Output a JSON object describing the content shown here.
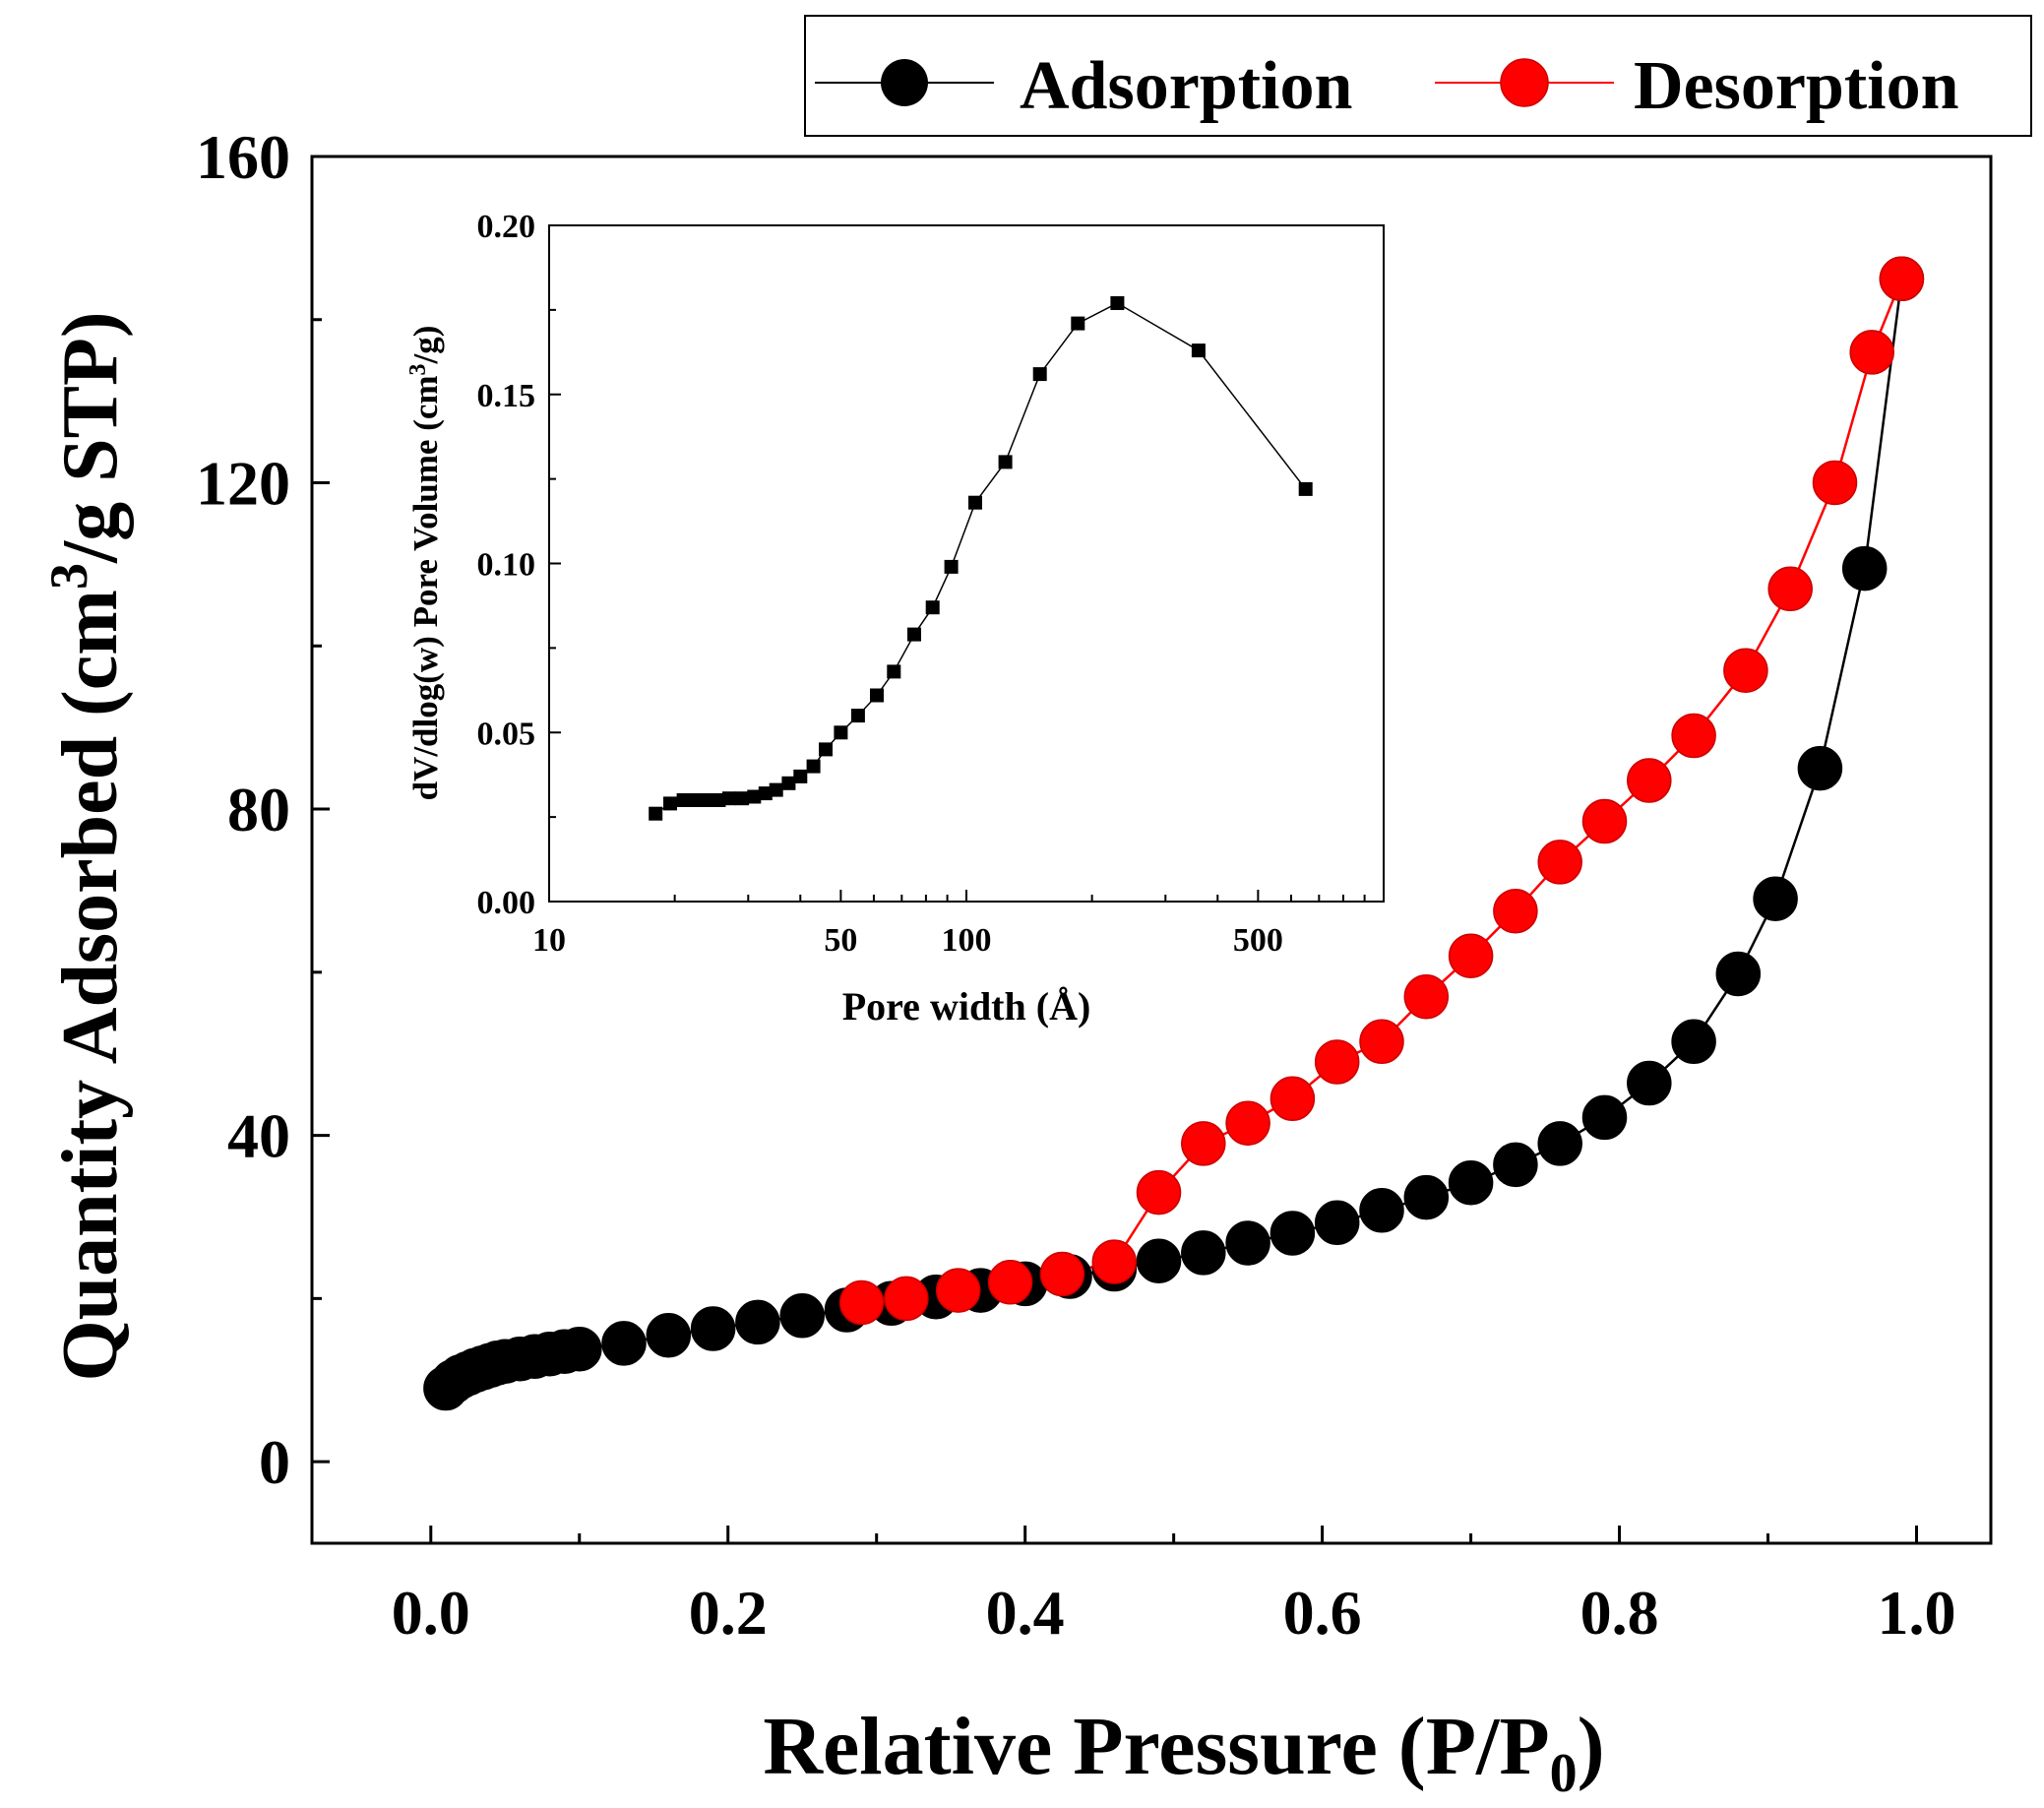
{
  "chart_data": [
    {
      "id": "main",
      "type": "scatter",
      "xlabel_base": "Relative Pressure (P/P",
      "xlabel_sub": "0",
      "xlabel_end": ")",
      "ylabel_base": "Quantity Adsorbed (cm",
      "ylabel_sup": "3",
      "ylabel_end": "/g STP)",
      "xlim": [
        -0.08,
        1.05
      ],
      "ylim": [
        -10,
        160
      ],
      "x_ticks": [
        0.0,
        0.2,
        0.4,
        0.6,
        0.8,
        1.0
      ],
      "x_tick_labels": [
        "0.0",
        "0.2",
        "0.4",
        "0.6",
        "0.8",
        "1.0"
      ],
      "x_minor_ticks": [
        0.1,
        0.3,
        0.5,
        0.7,
        0.9
      ],
      "y_ticks": [
        0,
        40,
        80,
        120,
        160
      ],
      "y_tick_labels": [
        "0",
        "40",
        "80",
        "120",
        "160"
      ],
      "y_minor_ticks": [
        20,
        60,
        100,
        140
      ],
      "grid": false,
      "legend_position": "top-right-outside",
      "series": [
        {
          "name": "Adsorption",
          "color": "#000000",
          "marker": "circle",
          "x": [
            0.01,
            0.015,
            0.02,
            0.025,
            0.03,
            0.035,
            0.04,
            0.045,
            0.05,
            0.06,
            0.07,
            0.08,
            0.09,
            0.1,
            0.13,
            0.16,
            0.19,
            0.22,
            0.25,
            0.28,
            0.31,
            0.34,
            0.37,
            0.4,
            0.43,
            0.46,
            0.49,
            0.52,
            0.55,
            0.58,
            0.61,
            0.64,
            0.67,
            0.7,
            0.73,
            0.76,
            0.79,
            0.82,
            0.85,
            0.88,
            0.905,
            0.935,
            0.965,
            0.99
          ],
          "y": [
            9,
            9.8,
            10.4,
            10.8,
            11.2,
            11.5,
            11.8,
            12.1,
            12.3,
            12.6,
            12.9,
            13.2,
            13.5,
            13.8,
            14.5,
            15.5,
            16.3,
            17.1,
            17.9,
            18.6,
            19.4,
            20.2,
            21.0,
            21.8,
            22.7,
            23.6,
            24.6,
            25.6,
            26.8,
            28.0,
            29.3,
            30.8,
            32.4,
            34.2,
            36.4,
            39.0,
            42.2,
            46.4,
            51.5,
            59.8,
            69.0,
            85.0,
            109.5,
            145.0
          ]
        },
        {
          "name": "Desorption",
          "color": "#ff0000",
          "marker": "circle",
          "x": [
            0.99,
            0.97,
            0.945,
            0.915,
            0.885,
            0.85,
            0.82,
            0.79,
            0.76,
            0.73,
            0.7,
            0.67,
            0.64,
            0.61,
            0.58,
            0.55,
            0.52,
            0.49,
            0.46,
            0.425,
            0.39,
            0.355,
            0.32,
            0.29
          ],
          "y": [
            145.0,
            136.0,
            120.0,
            107.0,
            97.0,
            89.0,
            83.5,
            78.5,
            73.5,
            67.5,
            62.0,
            57.0,
            51.5,
            49.0,
            44.5,
            41.5,
            39.0,
            33.0,
            24.5,
            23.0,
            22.0,
            21.0,
            20.0,
            19.5
          ]
        }
      ]
    },
    {
      "id": "inset",
      "type": "line",
      "xlabel": "Pore width (Å)",
      "ylabel_base": "dV/dlog(w) Pore Volume (cm",
      "ylabel_sup": "3",
      "ylabel_end": "/g)",
      "x_scale": "log",
      "xlim": [
        10,
        1000
      ],
      "ylim": [
        0,
        0.2
      ],
      "x_ticks": [
        10,
        50,
        100,
        500
      ],
      "x_tick_labels": [
        "10",
        "50",
        "100",
        "500"
      ],
      "y_ticks": [
        0,
        0.05,
        0.1,
        0.15,
        0.2
      ],
      "y_tick_labels": [
        "0.00",
        "0.05",
        "0.10",
        "0.15",
        "0.20"
      ],
      "grid": false,
      "series": [
        {
          "color": "#000000",
          "marker": "square",
          "x": [
            18,
            19.5,
            21,
            22.5,
            24,
            25.5,
            27,
            29,
            31,
            33,
            35,
            37.5,
            40,
            43,
            46,
            50,
            55,
            61,
            67,
            75,
            83,
            92,
            105,
            124,
            150,
            185,
            230,
            360,
            650
          ],
          "y": [
            0.026,
            0.029,
            0.03,
            0.03,
            0.03,
            0.03,
            0.0305,
            0.0305,
            0.031,
            0.032,
            0.033,
            0.035,
            0.037,
            0.04,
            0.045,
            0.05,
            0.055,
            0.061,
            0.068,
            0.079,
            0.087,
            0.099,
            0.118,
            0.13,
            0.156,
            0.171,
            0.177,
            0.163,
            0.122
          ]
        }
      ]
    }
  ],
  "legend": [
    {
      "label": "Adsorption",
      "color": "#000000"
    },
    {
      "label": "Desorption",
      "color": "#ff0000"
    }
  ]
}
